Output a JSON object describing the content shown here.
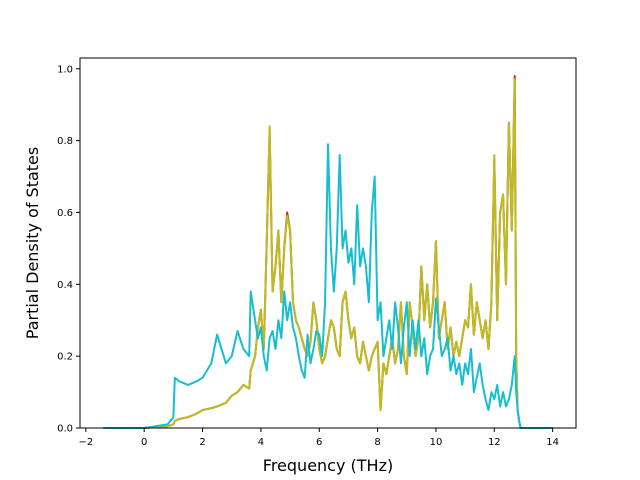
{
  "chart_data": {
    "type": "line",
    "title": "",
    "xlabel": "Frequency (THz)",
    "ylabel": "Partial Density of States",
    "xlim": [
      -2.2,
      14.8
    ],
    "ylim": [
      0.0,
      1.03
    ],
    "xticks": [
      -2,
      0,
      2,
      4,
      6,
      8,
      10,
      12,
      14
    ],
    "yticks": [
      0.0,
      0.2,
      0.4,
      0.6,
      0.8,
      1.0
    ],
    "grid": false,
    "legend": "none",
    "series": [
      {
        "color": "#d62728",
        "x": [
          -1.4,
          0,
          0.8,
          1.0,
          1.05,
          1.2,
          1.5,
          1.8,
          2.0,
          2.3,
          2.5,
          2.8,
          3.0,
          3.2,
          3.4,
          3.6,
          3.65,
          3.8,
          3.9,
          4.0,
          4.1,
          4.2,
          4.3,
          4.4,
          4.5,
          4.6,
          4.7,
          4.8,
          4.9,
          5.0,
          5.1,
          5.2,
          5.3,
          5.4,
          5.5,
          5.6,
          5.7,
          5.8,
          5.9,
          6.0,
          6.1,
          6.2,
          6.3,
          6.4,
          6.5,
          6.6,
          6.7,
          6.8,
          6.9,
          7.0,
          7.1,
          7.2,
          7.3,
          7.4,
          7.5,
          7.6,
          7.7,
          7.8,
          7.9,
          8.0,
          8.1,
          8.2,
          8.3,
          8.4,
          8.5,
          8.6,
          8.7,
          8.8,
          8.9,
          9.0,
          9.1,
          9.2,
          9.3,
          9.4,
          9.5,
          9.6,
          9.7,
          9.8,
          9.9,
          10.0,
          10.1,
          10.2,
          10.3,
          10.4,
          10.5,
          10.6,
          10.7,
          10.8,
          10.9,
          11.0,
          11.1,
          11.2,
          11.3,
          11.4,
          11.5,
          11.6,
          11.7,
          11.8,
          11.9,
          12.0,
          12.1,
          12.2,
          12.3,
          12.4,
          12.5,
          12.6,
          12.7,
          12.75,
          12.8,
          12.85,
          12.9,
          14.0
        ],
        "y": [
          0,
          0,
          0.005,
          0.01,
          0.02,
          0.025,
          0.03,
          0.04,
          0.05,
          0.055,
          0.06,
          0.07,
          0.09,
          0.1,
          0.12,
          0.11,
          0.16,
          0.2,
          0.28,
          0.33,
          0.22,
          0.52,
          0.83,
          0.38,
          0.45,
          0.55,
          0.35,
          0.5,
          0.6,
          0.55,
          0.35,
          0.3,
          0.28,
          0.25,
          0.22,
          0.2,
          0.24,
          0.35,
          0.3,
          0.22,
          0.18,
          0.2,
          0.25,
          0.3,
          0.28,
          0.22,
          0.2,
          0.35,
          0.38,
          0.3,
          0.25,
          0.28,
          0.2,
          0.18,
          0.24,
          0.2,
          0.16,
          0.2,
          0.22,
          0.24,
          0.05,
          0.18,
          0.15,
          0.2,
          0.25,
          0.18,
          0.22,
          0.35,
          0.2,
          0.15,
          0.35,
          0.28,
          0.2,
          0.25,
          0.45,
          0.3,
          0.4,
          0.28,
          0.35,
          0.52,
          0.25,
          0.3,
          0.35,
          0.22,
          0.28,
          0.2,
          0.24,
          0.2,
          0.25,
          0.3,
          0.28,
          0.4,
          0.26,
          0.35,
          0.3,
          0.25,
          0.3,
          0.22,
          0.35,
          0.75,
          0.3,
          0.6,
          0.65,
          0.4,
          0.85,
          0.55,
          0.98,
          0.2,
          0.05,
          0.02,
          0.0,
          0.0
        ]
      },
      {
        "color": "#bcbd22",
        "x": [
          -1.4,
          0,
          0.8,
          1.0,
          1.05,
          1.2,
          1.5,
          1.8,
          2.0,
          2.3,
          2.5,
          2.8,
          3.0,
          3.2,
          3.4,
          3.6,
          3.65,
          3.8,
          3.9,
          4.0,
          4.1,
          4.2,
          4.3,
          4.4,
          4.5,
          4.6,
          4.7,
          4.8,
          4.9,
          5.0,
          5.1,
          5.2,
          5.3,
          5.4,
          5.5,
          5.6,
          5.7,
          5.8,
          5.9,
          6.0,
          6.1,
          6.2,
          6.3,
          6.4,
          6.5,
          6.6,
          6.7,
          6.8,
          6.9,
          7.0,
          7.1,
          7.2,
          7.3,
          7.4,
          7.5,
          7.6,
          7.7,
          7.8,
          7.9,
          8.0,
          8.1,
          8.2,
          8.3,
          8.4,
          8.5,
          8.6,
          8.7,
          8.8,
          8.9,
          9.0,
          9.1,
          9.2,
          9.3,
          9.4,
          9.5,
          9.6,
          9.7,
          9.8,
          9.9,
          10.0,
          10.1,
          10.2,
          10.3,
          10.4,
          10.5,
          10.6,
          10.7,
          10.8,
          10.9,
          11.0,
          11.1,
          11.2,
          11.3,
          11.4,
          11.5,
          11.6,
          11.7,
          11.8,
          11.9,
          12.0,
          12.1,
          12.2,
          12.3,
          12.4,
          12.5,
          12.6,
          12.7,
          12.75,
          12.8,
          12.85,
          12.9,
          14.0
        ],
        "y": [
          0,
          0,
          0.005,
          0.01,
          0.02,
          0.025,
          0.03,
          0.04,
          0.05,
          0.055,
          0.06,
          0.07,
          0.09,
          0.1,
          0.12,
          0.11,
          0.16,
          0.2,
          0.28,
          0.33,
          0.22,
          0.52,
          0.84,
          0.38,
          0.45,
          0.55,
          0.35,
          0.5,
          0.59,
          0.55,
          0.35,
          0.3,
          0.28,
          0.25,
          0.22,
          0.2,
          0.24,
          0.35,
          0.3,
          0.22,
          0.18,
          0.2,
          0.25,
          0.3,
          0.28,
          0.22,
          0.2,
          0.35,
          0.38,
          0.3,
          0.25,
          0.28,
          0.2,
          0.18,
          0.24,
          0.2,
          0.16,
          0.2,
          0.22,
          0.24,
          0.05,
          0.18,
          0.15,
          0.2,
          0.25,
          0.18,
          0.22,
          0.35,
          0.2,
          0.15,
          0.35,
          0.28,
          0.2,
          0.25,
          0.45,
          0.3,
          0.4,
          0.28,
          0.35,
          0.52,
          0.25,
          0.3,
          0.35,
          0.22,
          0.28,
          0.2,
          0.24,
          0.2,
          0.25,
          0.3,
          0.28,
          0.4,
          0.26,
          0.35,
          0.3,
          0.25,
          0.3,
          0.22,
          0.35,
          0.76,
          0.3,
          0.6,
          0.65,
          0.4,
          0.85,
          0.55,
          0.97,
          0.2,
          0.05,
          0.02,
          0.0,
          0.0
        ]
      },
      {
        "color": "#17becf",
        "x": [
          -1.4,
          0,
          0.8,
          1.0,
          1.05,
          1.2,
          1.5,
          1.8,
          2.0,
          2.3,
          2.5,
          2.8,
          3.0,
          3.2,
          3.4,
          3.6,
          3.65,
          3.8,
          3.9,
          4.0,
          4.1,
          4.2,
          4.3,
          4.4,
          4.5,
          4.6,
          4.7,
          4.8,
          4.9,
          5.0,
          5.1,
          5.2,
          5.3,
          5.4,
          5.5,
          5.6,
          5.7,
          5.8,
          5.9,
          6.0,
          6.1,
          6.2,
          6.3,
          6.4,
          6.5,
          6.6,
          6.7,
          6.8,
          6.9,
          7.0,
          7.1,
          7.2,
          7.3,
          7.4,
          7.5,
          7.6,
          7.7,
          7.8,
          7.9,
          8.0,
          8.1,
          8.2,
          8.3,
          8.4,
          8.5,
          8.6,
          8.7,
          8.8,
          8.9,
          9.0,
          9.1,
          9.2,
          9.3,
          9.4,
          9.5,
          9.6,
          9.7,
          9.8,
          9.9,
          10.0,
          10.1,
          10.2,
          10.3,
          10.4,
          10.5,
          10.6,
          10.7,
          10.8,
          10.9,
          11.0,
          11.1,
          11.2,
          11.3,
          11.4,
          11.5,
          11.6,
          11.7,
          11.8,
          11.9,
          12.0,
          12.1,
          12.2,
          12.3,
          12.4,
          12.5,
          12.6,
          12.7,
          12.75,
          12.8,
          12.85,
          12.9,
          14.0
        ],
        "y": [
          0,
          0,
          0.01,
          0.03,
          0.14,
          0.13,
          0.12,
          0.13,
          0.14,
          0.18,
          0.26,
          0.18,
          0.2,
          0.27,
          0.22,
          0.2,
          0.38,
          0.3,
          0.25,
          0.28,
          0.2,
          0.16,
          0.25,
          0.27,
          0.22,
          0.3,
          0.25,
          0.38,
          0.3,
          0.35,
          0.28,
          0.25,
          0.2,
          0.16,
          0.14,
          0.26,
          0.18,
          0.22,
          0.27,
          0.26,
          0.2,
          0.35,
          0.79,
          0.5,
          0.38,
          0.5,
          0.76,
          0.5,
          0.55,
          0.46,
          0.5,
          0.4,
          0.62,
          0.45,
          0.5,
          0.45,
          0.35,
          0.6,
          0.7,
          0.3,
          0.35,
          0.2,
          0.25,
          0.3,
          0.22,
          0.35,
          0.28,
          0.18,
          0.28,
          0.35,
          0.2,
          0.3,
          0.22,
          0.3,
          0.2,
          0.25,
          0.15,
          0.2,
          0.22,
          0.36,
          0.28,
          0.2,
          0.22,
          0.25,
          0.16,
          0.2,
          0.15,
          0.18,
          0.12,
          0.18,
          0.15,
          0.22,
          0.1,
          0.14,
          0.18,
          0.12,
          0.08,
          0.05,
          0.1,
          0.08,
          0.12,
          0.06,
          0.1,
          0.06,
          0.08,
          0.12,
          0.2,
          0.1,
          0.05,
          0.02,
          0.0,
          0.0
        ]
      }
    ]
  }
}
